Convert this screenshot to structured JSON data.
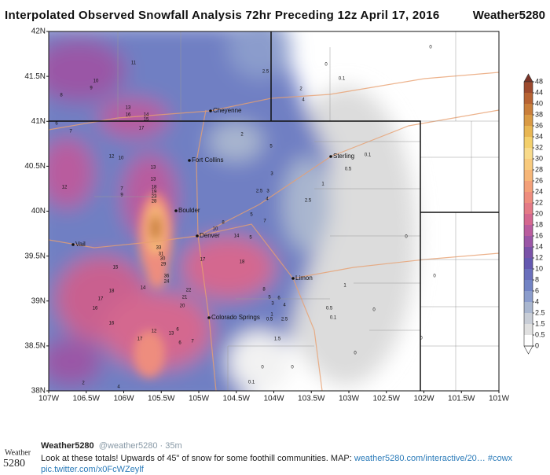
{
  "header": {
    "title": "Interpolated Observed Snowfall Analysis 72hr Preceding 12z April 17, 2016",
    "brand": "Weather5280"
  },
  "map": {
    "lat_ticks": [
      "42N",
      "41.5N",
      "41N",
      "40.5N",
      "40N",
      "39.5N",
      "39N",
      "38.5N",
      "38N"
    ],
    "lon_ticks": [
      "107W",
      "106.5W",
      "106W",
      "105.5W",
      "105W",
      "104.5W",
      "104W",
      "103.5W",
      "103W",
      "102.5W",
      "102W",
      "101.5W",
      "101W"
    ],
    "cities": [
      "Cheyenne",
      "Fort Collins",
      "Boulder",
      "Denver",
      "Vail",
      "Sterling",
      "Limon",
      "Colorado Springs"
    ],
    "amounts": [
      "11",
      "10",
      "9",
      "8",
      "13",
      "16",
      "14",
      "15",
      "17",
      "6",
      "7",
      "2.5",
      "0",
      "0.1",
      "2",
      "4",
      "0",
      "2",
      "5",
      "12",
      "10",
      "13",
      "12",
      "7",
      "9",
      "13",
      "18",
      "19",
      "23",
      "28",
      "3",
      "2.5",
      "3",
      "4",
      "1",
      "0.1",
      "0.5",
      "2.5",
      "5",
      "7",
      "0",
      "0",
      "10",
      "8",
      "14",
      "5",
      "33",
      "31",
      "30",
      "29",
      "36",
      "24",
      "15",
      "17",
      "18",
      "14",
      "18",
      "17",
      "16",
      "22",
      "21",
      "20",
      "16",
      "12",
      "6",
      "13",
      "17",
      "6",
      "7",
      "8",
      "5",
      "6",
      "3",
      "4",
      "1",
      "0.5",
      "2.5",
      "1",
      "0",
      "0.5",
      "0.1",
      "1.5",
      "0",
      "0",
      "0",
      "0",
      "0.1",
      "2",
      "4"
    ]
  },
  "colorbar": {
    "levels": [
      48,
      44,
      40,
      38,
      36,
      34,
      32,
      30,
      28,
      26,
      24,
      22,
      20,
      18,
      16,
      14,
      12,
      10,
      8,
      6,
      4,
      2.5,
      1.5,
      0.5,
      0
    ],
    "colors": [
      "#7a3428",
      "#9d4a2e",
      "#b76333",
      "#c97e3a",
      "#d99a44",
      "#e8b653",
      "#f3cf6b",
      "#f8da8a",
      "#f8ca7d",
      "#f6b678",
      "#f3a079",
      "#ee8d7e",
      "#e47a86",
      "#d4678f",
      "#b95c9e",
      "#9a56a6",
      "#7a52a8",
      "#6458b0",
      "#6a6fbc",
      "#7283c4",
      "#8b9ccc",
      "#a9b6cf",
      "#c8cdd6",
      "#e0e0e0",
      "#ffffff"
    ]
  },
  "tweet": {
    "avatar_top": "Weather",
    "avatar_bottom": "5280",
    "name": "Weather5280",
    "handle": "@weather5280 · 35m",
    "text": "Look at these totals! Upwards of 45\" of snow for some foothill communities. MAP: ",
    "link": "weather5280.com/interactive/20…",
    "hashtag": "#cowx",
    "pic": "pic.twitter.com/x0FcWZeylf"
  }
}
